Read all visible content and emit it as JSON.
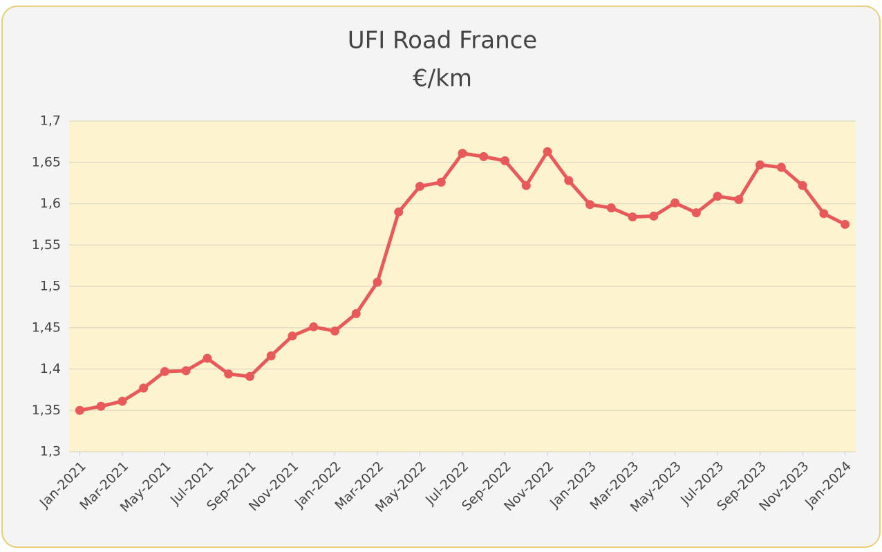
{
  "chart_data": {
    "type": "line",
    "title": "UFI Road France",
    "subtitle": "€/km",
    "categories": [
      "Jan-2021",
      null,
      "Mar-2021",
      null,
      "May-2021",
      null,
      "Jul-2021",
      null,
      "Sep-2021",
      null,
      "Nov-2021",
      null,
      "Jan-2022",
      null,
      "Mar-2022",
      null,
      "May-2022",
      null,
      "Jul-2022",
      null,
      "Sep-2022",
      null,
      "Nov-2022",
      null,
      "Jan-2023",
      null,
      "Mar-2023",
      null,
      "May-2023",
      null,
      "Jul-2023",
      null,
      "Sep-2023",
      null,
      "Nov-2023",
      null,
      "Jan-2024"
    ],
    "series": [
      {
        "name": "UFI Road France",
        "color": "#e85a5a",
        "values": [
          1.35,
          1.355,
          1.361,
          1.377,
          1.397,
          1.398,
          1.413,
          1.394,
          1.391,
          1.416,
          1.44,
          1.451,
          1.446,
          1.467,
          1.505,
          1.59,
          1.621,
          1.626,
          1.661,
          1.657,
          1.652,
          1.622,
          1.663,
          1.628,
          1.599,
          1.595,
          1.584,
          1.585,
          1.601,
          1.589,
          1.609,
          1.605,
          1.647,
          1.644,
          1.622,
          1.588,
          1.575
        ]
      }
    ],
    "ylim": [
      1.3,
      1.7
    ],
    "yticks": [
      {
        "value": 1.3,
        "label": "1,3"
      },
      {
        "value": 1.35,
        "label": "1,35"
      },
      {
        "value": 1.4,
        "label": "1,4"
      },
      {
        "value": 1.45,
        "label": "1,45"
      },
      {
        "value": 1.5,
        "label": "1,5"
      },
      {
        "value": 1.55,
        "label": "1,55"
      },
      {
        "value": 1.6,
        "label": "1,6"
      },
      {
        "value": 1.65,
        "label": "1,65"
      },
      {
        "value": 1.7,
        "label": "1,7"
      }
    ],
    "grid": true,
    "plot_background": "#fdf3cf"
  }
}
